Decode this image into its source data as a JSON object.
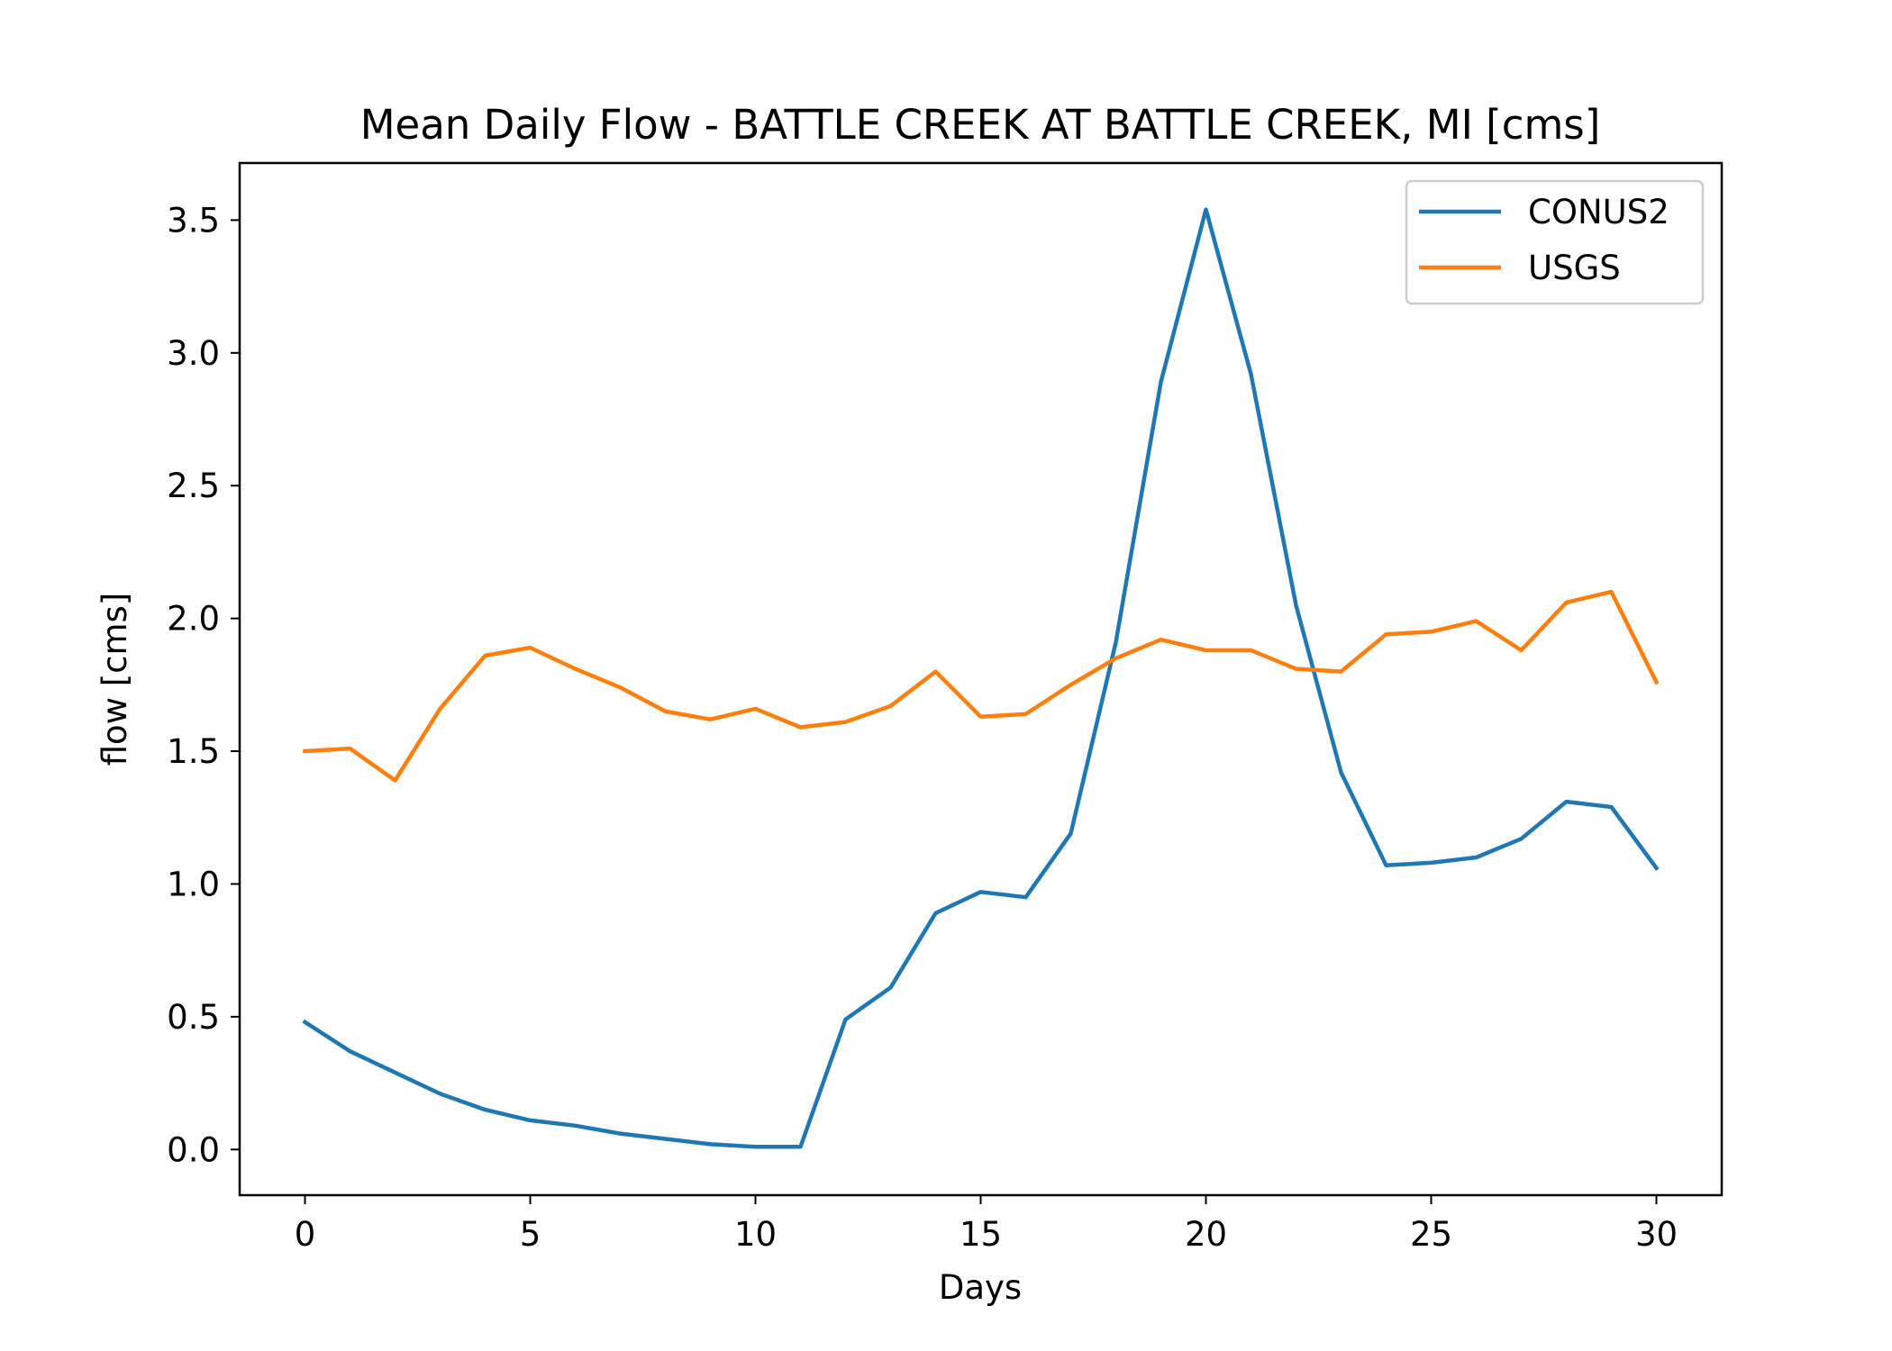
{
  "chart_data": {
    "type": "line",
    "title": "Mean Daily Flow - BATTLE CREEK AT BATTLE CREEK, MI [cms]",
    "xlabel": "Days",
    "ylabel": "flow [cms]",
    "xlim": [
      -1.45,
      31.45
    ],
    "ylim": [
      -0.172,
      3.715
    ],
    "xticks": [
      0,
      5,
      10,
      15,
      20,
      25,
      30
    ],
    "yticks": [
      0.0,
      0.5,
      1.0,
      1.5,
      2.0,
      2.5,
      3.0,
      3.5
    ],
    "xtick_labels": [
      "0",
      "5",
      "10",
      "15",
      "20",
      "25",
      "30"
    ],
    "ytick_labels": [
      "0.0",
      "0.5",
      "1.0",
      "1.5",
      "2.0",
      "2.5",
      "3.0",
      "3.5"
    ],
    "grid": false,
    "legend_position": "upper right",
    "x": [
      0,
      1,
      2,
      3,
      4,
      5,
      6,
      7,
      8,
      9,
      10,
      11,
      12,
      13,
      14,
      15,
      16,
      17,
      18,
      19,
      20,
      21,
      22,
      23,
      24,
      25,
      26,
      27,
      28,
      29,
      30
    ],
    "series": [
      {
        "name": "CONUS2",
        "color": "#1f77b4",
        "values": [
          0.48,
          0.37,
          0.29,
          0.21,
          0.15,
          0.11,
          0.09,
          0.06,
          0.04,
          0.02,
          0.01,
          0.01,
          0.49,
          0.61,
          0.89,
          0.97,
          0.95,
          1.19,
          1.91,
          2.89,
          3.54,
          2.92,
          2.05,
          1.42,
          1.07,
          1.08,
          1.1,
          1.17,
          1.31,
          1.29,
          1.06
        ]
      },
      {
        "name": "USGS",
        "color": "#ff7f0e",
        "values": [
          1.5,
          1.51,
          1.39,
          1.66,
          1.86,
          1.89,
          1.81,
          1.74,
          1.65,
          1.62,
          1.66,
          1.59,
          1.61,
          1.67,
          1.8,
          1.63,
          1.64,
          1.75,
          1.85,
          1.92,
          1.88,
          1.88,
          1.81,
          1.8,
          1.94,
          1.95,
          1.99,
          1.88,
          2.06,
          2.1,
          1.76
        ]
      }
    ]
  }
}
